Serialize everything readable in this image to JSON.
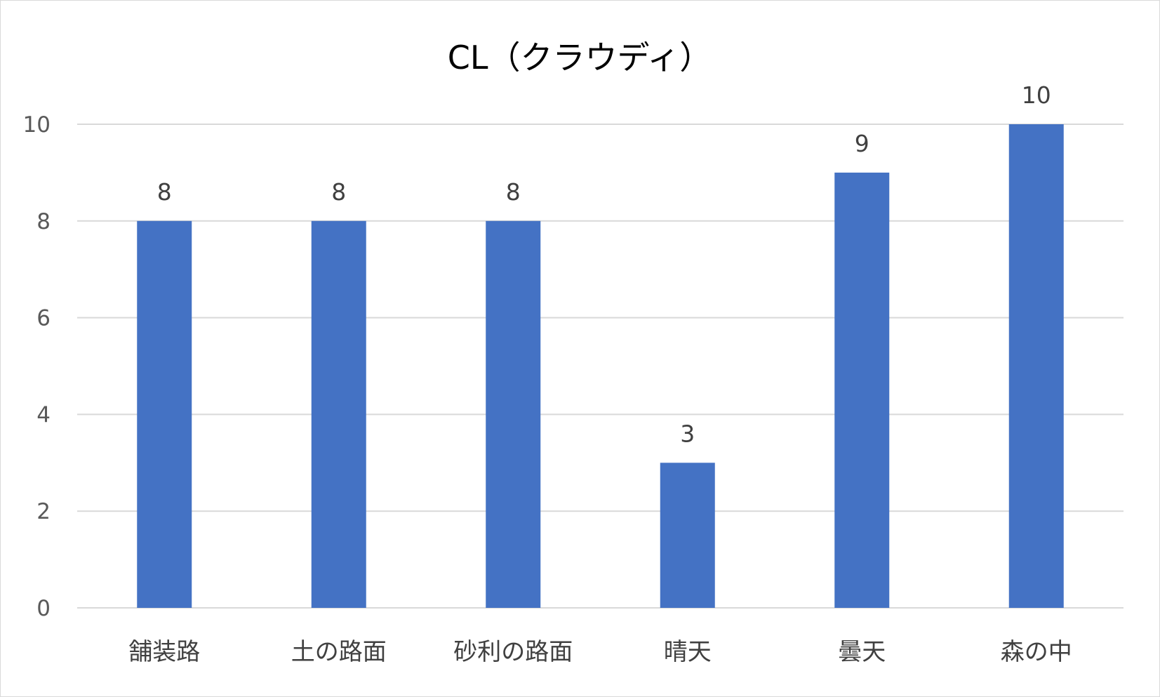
{
  "chart_data": {
    "type": "bar",
    "title": "CL（クラウディ）",
    "xlabel": "",
    "ylabel": "",
    "categories": [
      "舗装路",
      "土の路面",
      "砂利の路面",
      "晴天",
      "曇天",
      "森の中"
    ],
    "values": [
      8,
      8,
      8,
      3,
      9,
      10
    ],
    "data_labels": [
      "8",
      "8",
      "8",
      "3",
      "9",
      "10"
    ],
    "highlight_label_index": 5,
    "ylim": [
      0,
      10
    ],
    "yticks": [
      0,
      2,
      4,
      6,
      8,
      10
    ],
    "ytick_labels": [
      "0",
      "2",
      "4",
      "6",
      "8",
      "10"
    ],
    "grid": true,
    "legend": "none",
    "bar_color": "#4472c4",
    "grid_color": "#d9d9d9",
    "label_color": "#404040",
    "highlight_label_color": "#ff0000"
  }
}
